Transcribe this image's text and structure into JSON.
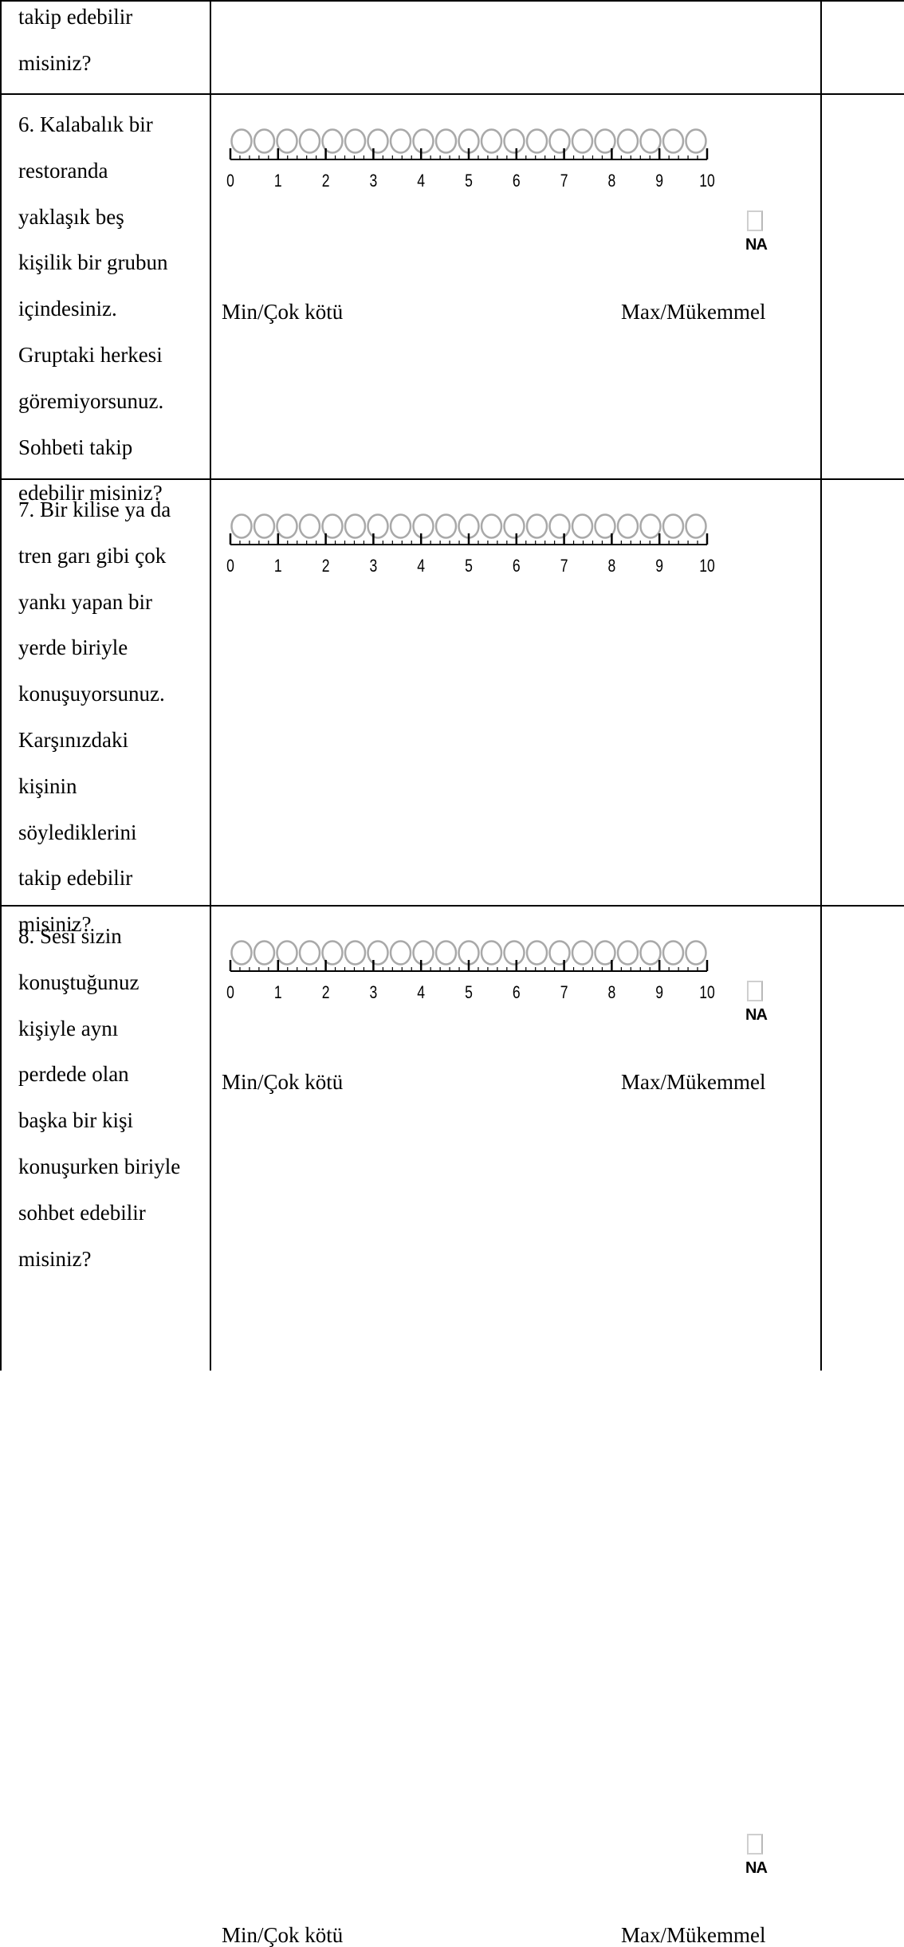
{
  "scale_labels": {
    "ticks": [
      "0",
      "1",
      "2",
      "3",
      "4",
      "5",
      "6",
      "7",
      "8",
      "9",
      "10"
    ],
    "min_label": "Min/Çok kötü",
    "max_label": "Max/Mükemmel",
    "na_label": "NA",
    "circle_count": 21
  },
  "questions": [
    {
      "text": "takip edebilir\nmisiniz?",
      "has_scale": false
    },
    {
      "text": "6. Kalabalık bir\nrestoranda\nyaklaşık beş\nkişilik bir grubun\niçindesiniz.\nGruptaki herkesi\ngöremiyorsunuz.\nSohbeti takip\nedebilir misiniz?",
      "has_scale": true
    },
    {
      "text": "7. Bir kilise ya da\ntren garı gibi çok\nyankı yapan bir\nyerde biriyle\nkonuşuyorsunuz.\nKarşınızdaki\nkişinin\nsöylediklerini\ntakip edebilir\nmisiniz?",
      "has_scale": true
    },
    {
      "text": "8. Sesi sizin\nkonuştuğunuz\nkişiyle aynı\nperdede olan\nbaşka bir kişi\nkonuşurken biriyle\nsohbet edebilir\nmisiniz?",
      "has_scale": true
    }
  ]
}
